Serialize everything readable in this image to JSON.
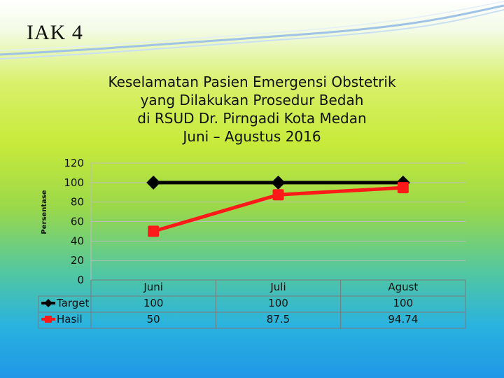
{
  "slide": {
    "title": "IAK 4"
  },
  "chart_data": {
    "type": "line",
    "title": "Keselamatan Pasien Emergensi Obstetrik yang Dilakukan Prosedur Bedah di RSUD Dr. Pirngadi Kota Medan Juni – Agustus  2016",
    "title_lines": [
      "Keselamatan Pasien Emergensi Obstetrik",
      "yang Dilakukan Prosedur Bedah",
      "di RSUD Dr. Pirngadi Kota Medan",
      "Juni – Agustus  2016"
    ],
    "ylabel": "Persentase",
    "xlabel": "",
    "ylim": [
      0,
      120
    ],
    "yticks": [
      "0",
      "20",
      "40",
      "60",
      "80",
      "100",
      "120"
    ],
    "grid": true,
    "legend": "bottom-left data table",
    "categories": [
      "Juni",
      "Juli",
      "Agust"
    ],
    "series": [
      {
        "name": "Target",
        "values": [
          100,
          100,
          100
        ],
        "labels": [
          "100",
          "100",
          "100"
        ],
        "color": "#000000",
        "marker": "diamond"
      },
      {
        "name": "Hasil",
        "values": [
          50,
          87.5,
          94.74
        ],
        "labels": [
          "50",
          "87.5",
          "94.74"
        ],
        "color": "#ff1a1a",
        "marker": "square"
      }
    ]
  }
}
